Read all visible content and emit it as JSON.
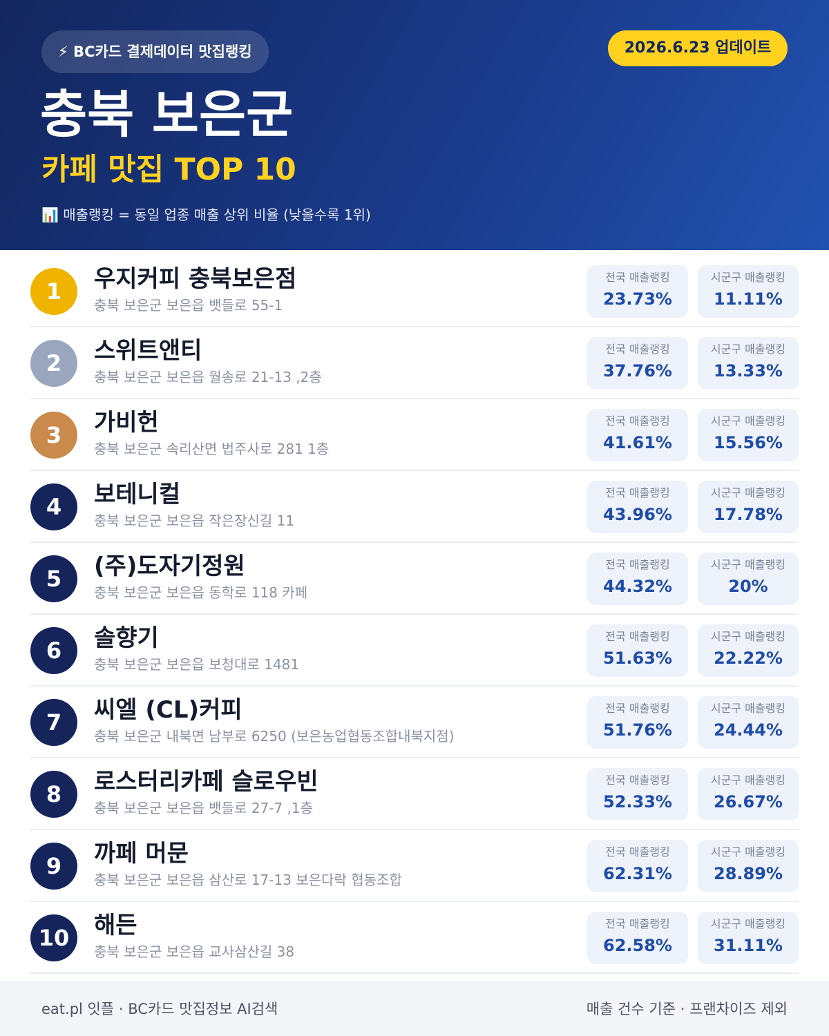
{
  "header": {
    "badge": "⚡ BC카드 결제데이터 맛집랭킹",
    "update": "2026.6.23 업데이트",
    "title": "충북 보은군",
    "subtitle": "카페 맛집 TOP 10",
    "note": "📊 매출랭킹 = 동일 업종 매출 상위 비율 (낮을수록 1위)"
  },
  "labels": {
    "national": "전국 매출랭킹",
    "local": "시군구 매출랭킹"
  },
  "rows": [
    {
      "rank": "1",
      "name": "우지커피 충북보은점",
      "address": "충북 보은군 보은읍 뱃들로 55-1",
      "national": "23.73%",
      "local": "11.11%"
    },
    {
      "rank": "2",
      "name": "스위트앤티",
      "address": "충북 보은군 보은읍 월송로 21-13 ,2층",
      "national": "37.76%",
      "local": "13.33%"
    },
    {
      "rank": "3",
      "name": "가비헌",
      "address": "충북 보은군 속리산면 법주사로 281 1층",
      "national": "41.61%",
      "local": "15.56%"
    },
    {
      "rank": "4",
      "name": "보테니컬",
      "address": "충북 보은군 보은읍 작은장신길 11",
      "national": "43.96%",
      "local": "17.78%"
    },
    {
      "rank": "5",
      "name": "(주)도자기정원",
      "address": "충북 보은군 보은읍 동학로 118 카페",
      "national": "44.32%",
      "local": "20%"
    },
    {
      "rank": "6",
      "name": "솔향기",
      "address": "충북 보은군 보은읍 보청대로 1481",
      "national": "51.63%",
      "local": "22.22%"
    },
    {
      "rank": "7",
      "name": "씨엘 (CL)커피",
      "address": "충북 보은군 내북면 남부로 6250 (보은농업협동조합내북지점)",
      "national": "51.76%",
      "local": "24.44%"
    },
    {
      "rank": "8",
      "name": "로스터리카페 슬로우빈",
      "address": "충북 보은군 보은읍 뱃들로 27-7 ,1층",
      "national": "52.33%",
      "local": "26.67%"
    },
    {
      "rank": "9",
      "name": "까페 머문",
      "address": "충북 보은군 보은읍 삼산로 17-13 보은다락 협동조합",
      "national": "62.31%",
      "local": "28.89%"
    },
    {
      "rank": "10",
      "name": "해든",
      "address": "충북 보은군 보은읍 교사삼산길 38",
      "national": "62.58%",
      "local": "31.11%"
    }
  ],
  "footer": {
    "left": "eat.pl 잇플 · BC카드 맛집정보 AI검색",
    "right": "매출 건수 기준 · 프랜차이즈 제외"
  }
}
